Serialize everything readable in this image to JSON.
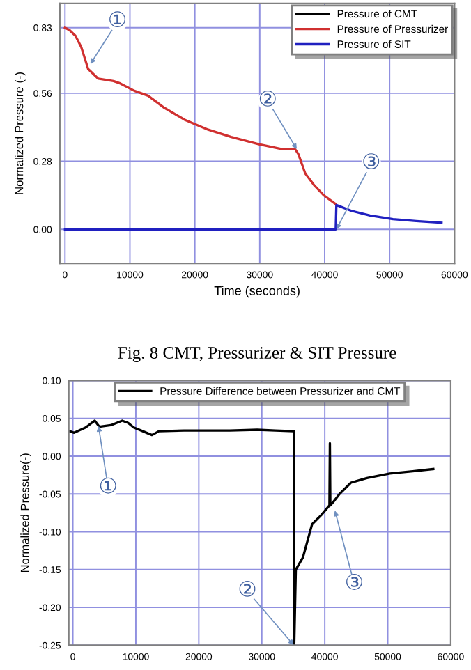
{
  "chart_data": [
    {
      "type": "line",
      "xlabel": "Time (seconds)",
      "ylabel": "Normalized Pressure (-)",
      "xlim": [
        -800,
        60000
      ],
      "ylim": [
        -0.14,
        0.93
      ],
      "xticks": [
        0,
        10000,
        20000,
        30000,
        40000,
        50000,
        60000
      ],
      "yticks": [
        {
          "value": 0.0,
          "label": "0.00"
        },
        {
          "value": 0.28,
          "label": "0.28"
        },
        {
          "value": 0.56,
          "label": "0.56"
        },
        {
          "value": 0.83,
          "label": "0.83"
        }
      ],
      "grid": true,
      "legend": "top right",
      "marker": "none",
      "line_style": "solid",
      "series": [
        {
          "name": "Pressure of CMT",
          "color": "#000000"
        },
        {
          "name": "Pressure of Pressurizer",
          "color": "#d03030",
          "x": [
            0,
            700,
            1600,
            2500,
            3560,
            5120,
            7470,
            8540,
            10680,
            12800,
            15300,
            18500,
            22060,
            25600,
            29900,
            33450,
            35440,
            35940,
            37010,
            38430,
            39860,
            41640
          ],
          "values": [
            0.83,
            0.82,
            0.797,
            0.75,
            0.66,
            0.62,
            0.61,
            0.6,
            0.57,
            0.55,
            0.5,
            0.45,
            0.41,
            0.38,
            0.35,
            0.33,
            0.33,
            0.31,
            0.23,
            0.18,
            0.14,
            0.105
          ]
        },
        {
          "name": "Pressure of SIT",
          "color": "#2020c0",
          "x": [
            0,
            41700,
            41800,
            44130,
            46980,
            50530,
            54090,
            58000
          ],
          "values": [
            0.0,
            0.0,
            0.1,
            0.076,
            0.057,
            0.042,
            0.034,
            0.027
          ]
        }
      ],
      "annotations": [
        {
          "text": "①",
          "x": 3900,
          "y": 0.68
        },
        {
          "text": "②",
          "x": 35700,
          "y": 0.33
        },
        {
          "text": "③",
          "x": 41800,
          "y": 0.0
        },
        "Fig. 8 CMT, Pressurizer & SIT Pressure"
      ]
    },
    {
      "type": "line",
      "ylabel": "Normalized Pressure(-)",
      "xlim": [
        -650,
        60000
      ],
      "ylim": [
        -0.25,
        0.1
      ],
      "xticks": [
        0,
        10000,
        20000,
        30000,
        40000,
        50000,
        60000
      ],
      "yticks": [
        {
          "value": 0.1,
          "label": "0.10"
        },
        {
          "value": 0.05,
          "label": "0.05"
        },
        {
          "value": 0.0,
          "label": "0.00"
        },
        {
          "value": -0.05,
          "label": "-0.05"
        },
        {
          "value": -0.1,
          "label": "-0.10"
        },
        {
          "value": -0.15,
          "label": "-0.15"
        },
        {
          "value": -0.2,
          "label": "-0.20"
        },
        {
          "value": -0.25,
          "label": "-0.25"
        }
      ],
      "grid": true,
      "legend": "top",
      "marker": "none",
      "line_style": "solid",
      "series": [
        {
          "name": "Pressure Difference between Pressurizer and CMT",
          "color": "#000000",
          "x": [
            -500,
            200,
            2030,
            3480,
            4210,
            6030,
            7840,
            8790,
            9660,
            11110,
            12560,
            13650,
            17650,
            24910,
            29270,
            32170,
            35080,
            35150,
            35400,
            36530,
            37980,
            39430,
            40740,
            40810,
            40880,
            41400,
            42340,
            44150,
            46700,
            50330,
            53960,
            57230
          ],
          "values": [
            0.033,
            0.031,
            0.038,
            0.047,
            0.039,
            0.041,
            0.047,
            0.044,
            0.038,
            0.033,
            0.028,
            0.033,
            0.034,
            0.034,
            0.035,
            0.034,
            0.033,
            -0.25,
            -0.15,
            -0.134,
            -0.09,
            -0.078,
            -0.065,
            0.017,
            -0.065,
            -0.06,
            -0.05,
            -0.035,
            -0.029,
            -0.023,
            -0.02,
            -0.017
          ]
        }
      ],
      "annotations": [
        {
          "text": "①",
          "x": 4070,
          "y": 0.04
        },
        {
          "text": "②",
          "x": 35080,
          "y": -0.25
        },
        {
          "text": "③",
          "x": 41610,
          "y": -0.072
        }
      ]
    }
  ]
}
